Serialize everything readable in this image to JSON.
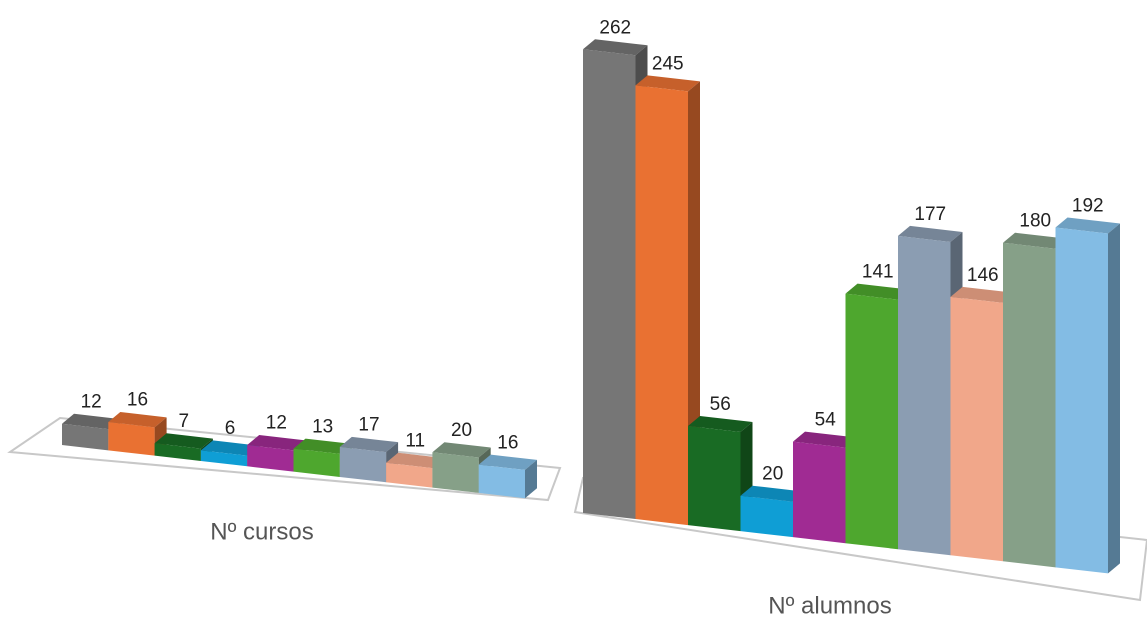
{
  "chart_data": {
    "type": "bar3d",
    "categories": [
      "Nº cursos",
      "Nº alumnos"
    ],
    "series": [
      {
        "color": "#767676",
        "values": [
          12,
          262
        ]
      },
      {
        "color": "#e97132",
        "values": [
          16,
          245
        ]
      },
      {
        "color": "#196b24",
        "values": [
          7,
          56
        ]
      },
      {
        "color": "#0f9ed5",
        "values": [
          6,
          20
        ]
      },
      {
        "color": "#a02b93",
        "values": [
          12,
          54
        ]
      },
      {
        "color": "#4ea72e",
        "values": [
          13,
          141
        ]
      },
      {
        "color": "#8b9db2",
        "values": [
          17,
          177
        ]
      },
      {
        "color": "#f1a78a",
        "values": [
          11,
          146
        ]
      },
      {
        "color": "#86a088",
        "values": [
          20,
          180
        ]
      },
      {
        "color": "#83bce4",
        "values": [
          16,
          192
        ]
      }
    ]
  }
}
